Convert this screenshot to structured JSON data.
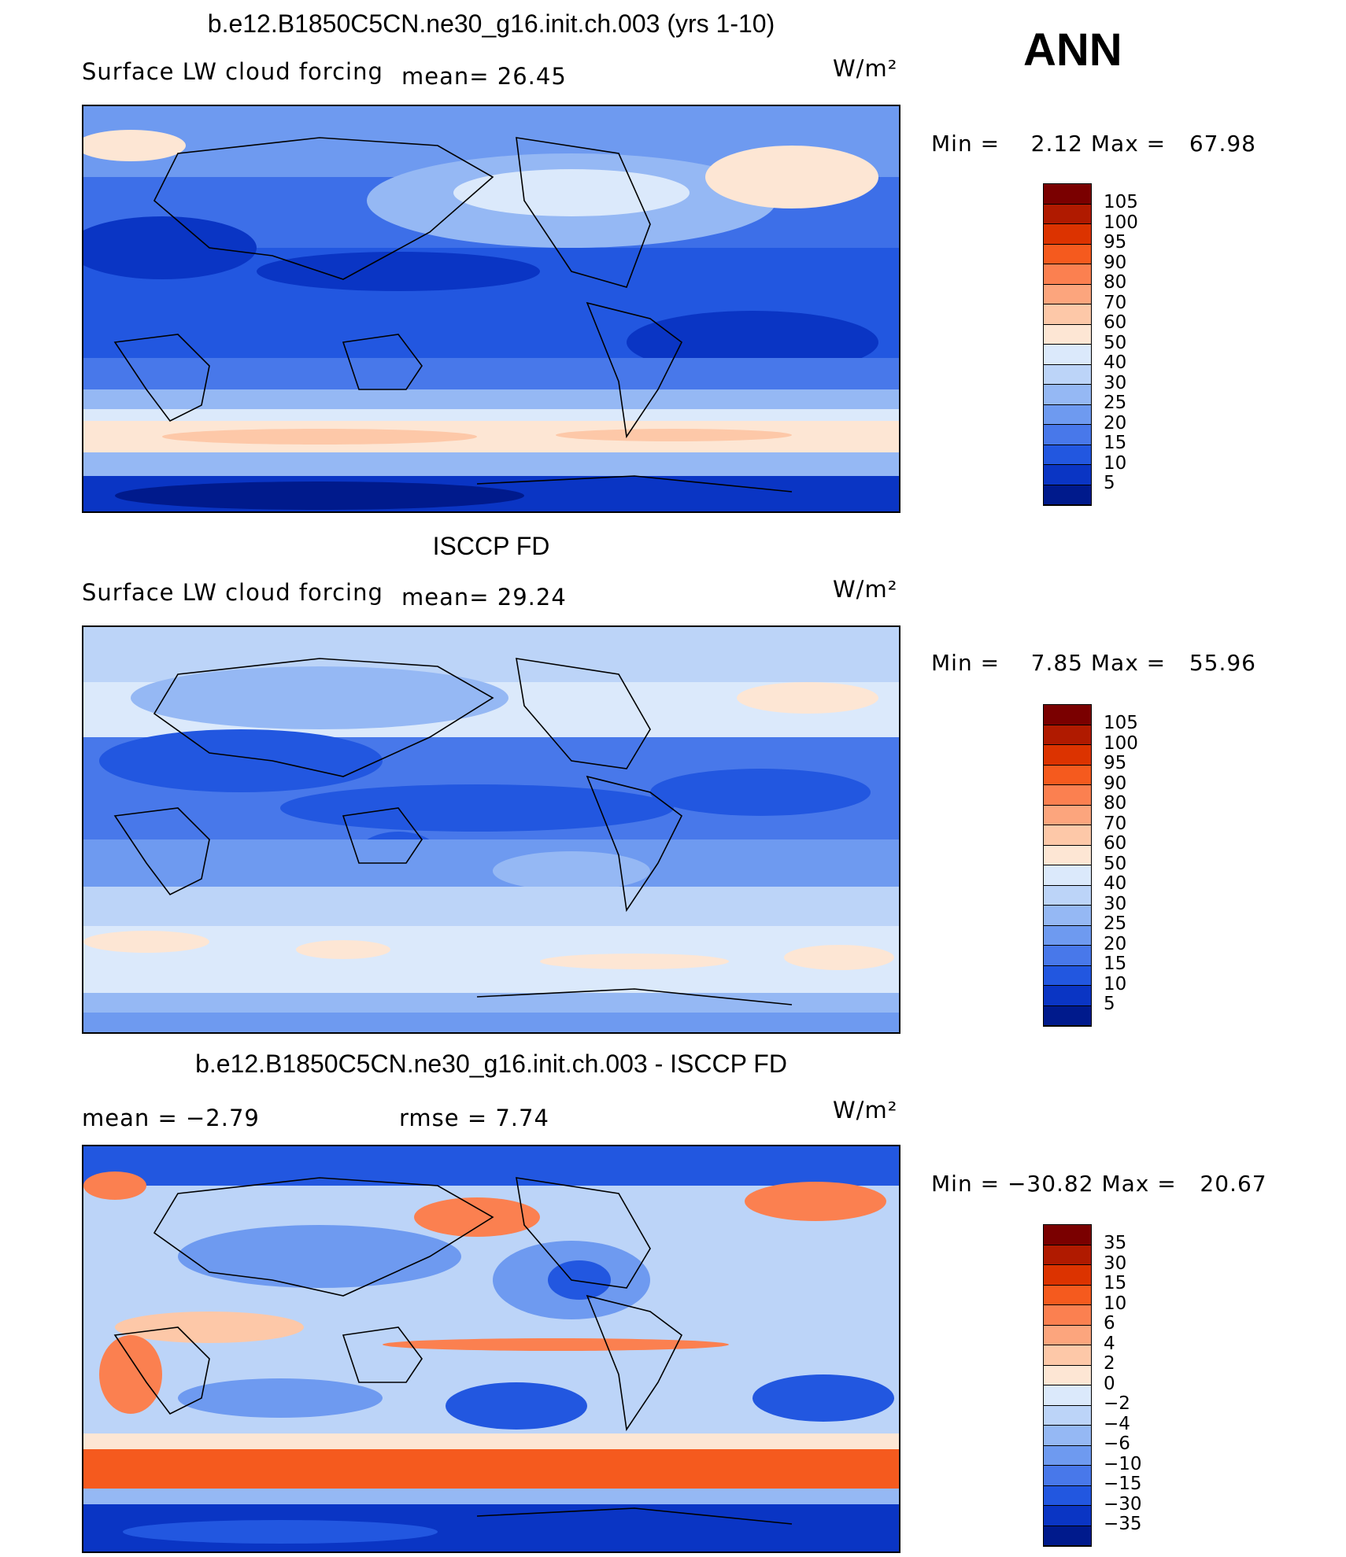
{
  "corner_label": "ANN",
  "panels": [
    {
      "title": "b.e12.B1850C5CN.ne30_g16.init.ch.003 (yrs 1-10)",
      "left_label": "Surface LW cloud forcing",
      "mean_text": "mean=  26.45",
      "units": "W/m²",
      "minmax": "Min =    2.12 Max =   67.98"
    },
    {
      "title": "ISCCP FD",
      "left_label": "Surface LW cloud forcing",
      "mean_text": "mean=  29.24",
      "units": "W/m²",
      "minmax": "Min =    7.85 Max =   55.96"
    },
    {
      "title": "b.e12.B1850C5CN.ne30_g16.init.ch.003 - ISCCP FD",
      "left_label": "mean =   −2.79",
      "mean_text": "rmse =    7.74",
      "units": "W/m²",
      "minmax": "Min = −30.82 Max =   20.67"
    }
  ],
  "colorbars": {
    "field_ticks": [
      "105",
      "100",
      "95",
      "90",
      "80",
      "70",
      "60",
      "50",
      "40",
      "30",
      "25",
      "20",
      "15",
      "10",
      "5"
    ],
    "diff_ticks": [
      "35",
      "30",
      "15",
      "10",
      "6",
      "4",
      "2",
      "0",
      "−2",
      "−4",
      "−6",
      "−10",
      "−15",
      "−30",
      "−35"
    ],
    "colors": [
      "#7a0000",
      "#b01a00",
      "#dc3300",
      "#f55a1e",
      "#fb8050",
      "#fca57d",
      "#fdc8a8",
      "#fde6d4",
      "#dbe9fb",
      "#bcd4f8",
      "#95b8f4",
      "#6e9af0",
      "#4878ea",
      "#2257e0",
      "#0a35c4",
      "#001a8c"
    ]
  },
  "icons": {
    "map_outlines": "world-coastline"
  }
}
